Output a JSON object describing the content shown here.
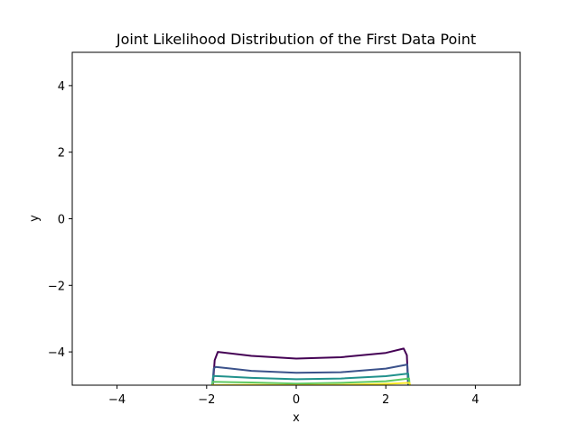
{
  "chart_data": {
    "type": "contour",
    "title": "Joint Likelihood Distribution of the First Data Point",
    "xlabel": "x",
    "ylabel": "y",
    "xlim": [
      -5,
      5
    ],
    "ylim": [
      -5,
      5
    ],
    "x_ticks": [
      -4,
      -2,
      0,
      2,
      4
    ],
    "y_ticks": [
      -4,
      -2,
      0,
      2,
      4
    ],
    "x_tick_labels": [
      "−4",
      "−2",
      "0",
      "2",
      "4"
    ],
    "y_tick_labels": [
      "−4",
      "−2",
      "0",
      "2",
      "4"
    ],
    "grid": false,
    "legend": "none",
    "colormap": "viridis",
    "contours": [
      {
        "color": "#440154",
        "points": [
          [
            -1.86,
            -5.0
          ],
          [
            -1.82,
            -4.25
          ],
          [
            -1.75,
            -4.0
          ],
          [
            -1.0,
            -4.12
          ],
          [
            0.0,
            -4.2
          ],
          [
            1.0,
            -4.16
          ],
          [
            2.0,
            -4.03
          ],
          [
            2.4,
            -3.9
          ],
          [
            2.47,
            -4.1
          ],
          [
            2.5,
            -5.0
          ]
        ]
      },
      {
        "color": "#3b528b",
        "points": [
          [
            -1.87,
            -5.0
          ],
          [
            -1.84,
            -4.5
          ],
          [
            -1.8,
            -4.45
          ],
          [
            -1.0,
            -4.57
          ],
          [
            0.0,
            -4.63
          ],
          [
            1.0,
            -4.61
          ],
          [
            2.0,
            -4.5
          ],
          [
            2.48,
            -4.38
          ],
          [
            2.5,
            -5.0
          ]
        ]
      },
      {
        "color": "#21918c",
        "points": [
          [
            -1.88,
            -5.0
          ],
          [
            -1.85,
            -4.72
          ],
          [
            -1.0,
            -4.78
          ],
          [
            0.0,
            -4.82
          ],
          [
            1.0,
            -4.8
          ],
          [
            2.0,
            -4.73
          ],
          [
            2.5,
            -4.65
          ],
          [
            2.52,
            -5.0
          ]
        ]
      },
      {
        "color": "#5ec962",
        "points": [
          [
            -1.88,
            -5.0
          ],
          [
            -1.86,
            -4.9
          ],
          [
            -1.0,
            -4.92
          ],
          [
            0.0,
            -4.95
          ],
          [
            1.0,
            -4.93
          ],
          [
            2.0,
            -4.88
          ],
          [
            2.52,
            -4.8
          ],
          [
            2.53,
            -5.0
          ]
        ]
      },
      {
        "color": "#fde725",
        "points": [
          [
            -1.89,
            -5.0
          ],
          [
            -1.0,
            -4.99
          ],
          [
            0.0,
            -5.0
          ],
          [
            1.0,
            -4.99
          ],
          [
            2.0,
            -4.96
          ],
          [
            2.53,
            -4.93
          ],
          [
            2.54,
            -5.0
          ]
        ]
      }
    ]
  }
}
